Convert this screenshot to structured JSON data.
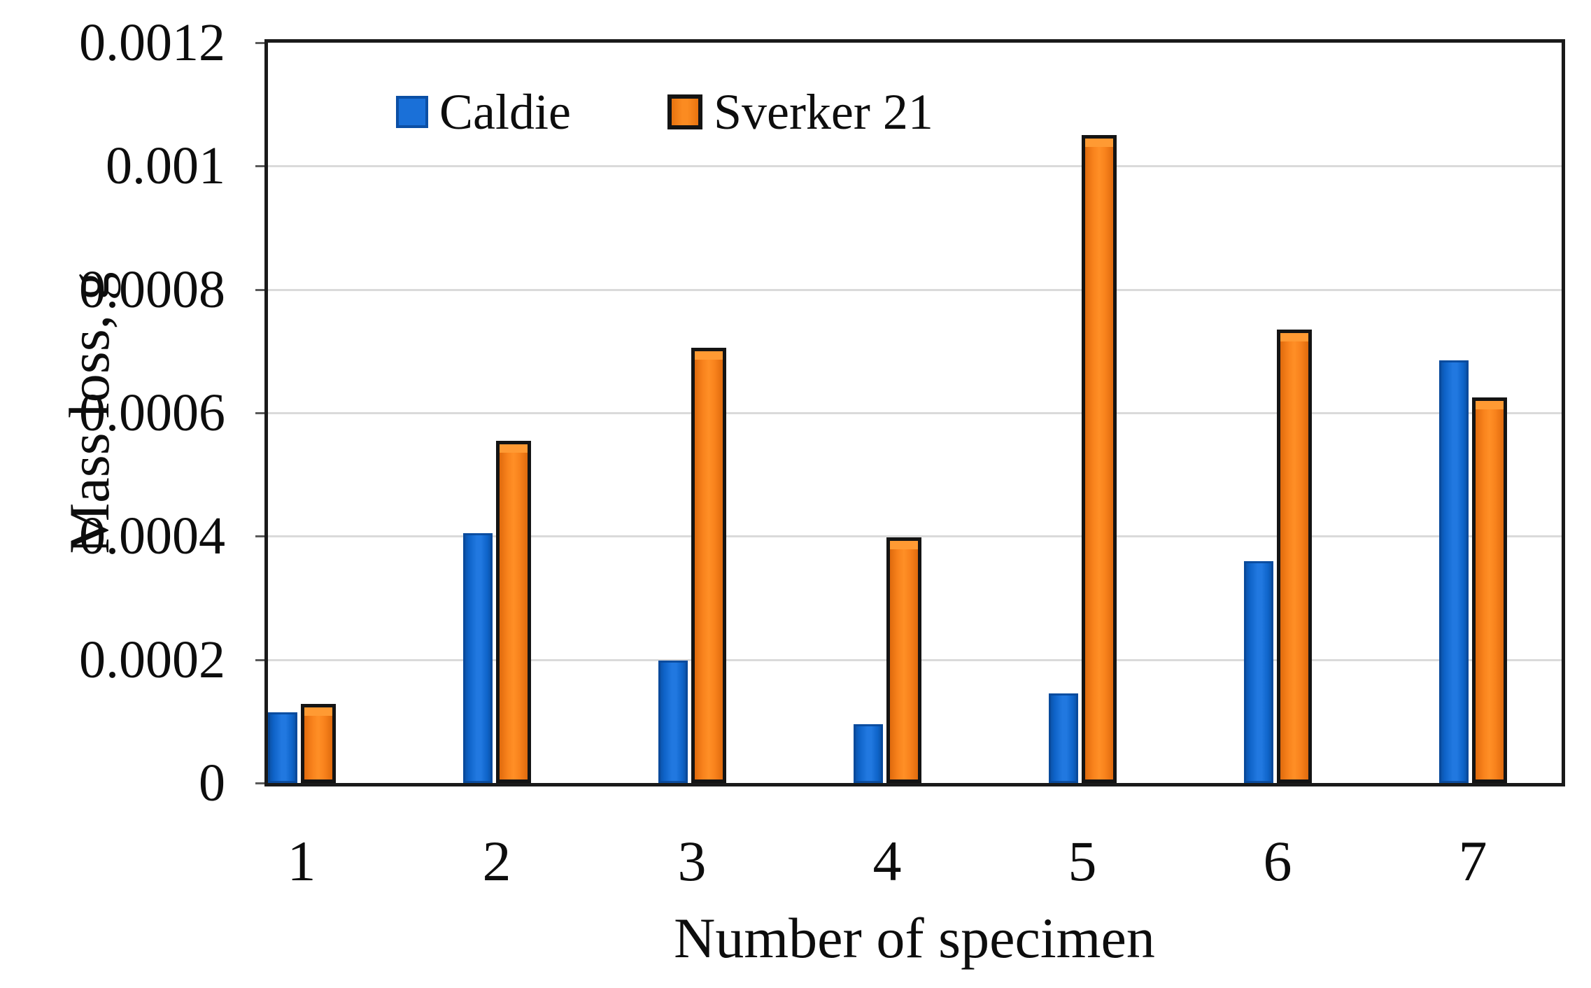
{
  "chart_data": {
    "type": "bar",
    "title": "",
    "categories": [
      "1",
      "2",
      "3",
      "4",
      "5",
      "6",
      "7"
    ],
    "series": [
      {
        "name": "Caldie",
        "color": "#1469d3",
        "values": [
          0.000115,
          0.000405,
          0.000198,
          9.5e-05,
          0.000145,
          0.00036,
          0.000685
        ]
      },
      {
        "name": "Sverker 21",
        "color": "#f5801c",
        "values": [
          0.000128,
          0.000555,
          0.000705,
          0.000398,
          0.00105,
          0.000735,
          0.000625
        ]
      }
    ],
    "xlabel": "Number of specimen",
    "ylabel": "Mass loss, g",
    "ylim": [
      0,
      0.0012
    ],
    "ytick_step": 0.0002,
    "ytick_labels": [
      "0",
      "0.0002",
      "0.0004",
      "0.0006",
      "0.0008",
      "0.001",
      "0.0012"
    ],
    "grid": true,
    "legend_position": "top-inside",
    "plot_border": true
  },
  "legend": {
    "caldie_label": "Caldie",
    "sverker_label": "Sverker 21"
  },
  "colors": {
    "caldie_fill": "#1469d3",
    "sverker_fill": "#f5801c",
    "sverker_border": "#141414",
    "gridline": "#dadada",
    "frame": "#1a1a1a",
    "text": "#0d0d0d"
  }
}
